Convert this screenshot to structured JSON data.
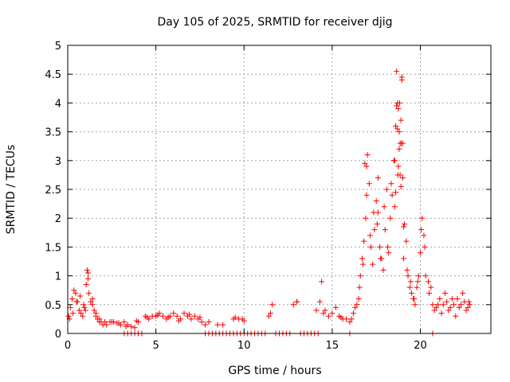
{
  "chart_data": {
    "type": "scatter",
    "title": "Day 105 of 2025, SRMTID for receiver djig",
    "xlabel": "GPS time / hours",
    "ylabel": "SRMTID / TECUs",
    "xlim": [
      0,
      24
    ],
    "ylim": [
      0,
      5
    ],
    "xticks": [
      0,
      5,
      10,
      15,
      20
    ],
    "xtick_labels": [
      "0",
      "5",
      "10",
      "15",
      "20"
    ],
    "yticks": [
      0,
      0.5,
      1,
      1.5,
      2,
      2.5,
      3,
      3.5,
      4,
      4.5,
      5
    ],
    "ytick_labels": [
      "0",
      "0.5",
      "1",
      "1.5",
      "2",
      "2.5",
      "3",
      "3.5",
      "4",
      "4.5",
      "5"
    ],
    "grid": true,
    "marker": "+",
    "marker_color": "#ff0000",
    "series": [
      {
        "name": "SRMTID",
        "x": [
          0.05,
          0.15,
          0.25,
          0.35,
          0.45,
          0.55,
          0.65,
          0.75,
          0.85,
          0.95,
          1.05,
          1.1,
          1.15,
          1.2,
          1.3,
          1.4,
          1.5,
          1.6,
          1.7,
          1.8,
          1.9,
          2.0,
          2.2,
          2.4,
          2.6,
          2.8,
          3.0,
          3.2,
          3.4,
          3.6,
          3.8,
          4.0,
          4.4,
          4.6,
          4.8,
          5.0,
          5.2,
          5.4,
          5.6,
          5.8,
          6.0,
          6.2,
          6.4,
          6.6,
          6.8,
          7.0,
          7.2,
          7.4,
          7.6,
          7.8,
          8.0,
          8.5,
          8.8,
          9.4,
          9.7,
          9.9,
          11.4,
          11.6,
          12.8,
          13.0,
          14.1,
          14.3,
          14.4,
          14.6,
          14.8,
          15.0,
          15.2,
          15.4,
          15.6,
          15.8,
          16.0,
          16.2,
          16.4,
          16.5,
          16.6,
          16.7,
          16.8,
          16.9,
          17.0,
          17.1,
          17.2,
          17.3,
          17.4,
          17.5,
          17.6,
          17.7,
          17.8,
          17.9,
          18.0,
          18.1,
          18.2,
          18.3,
          18.4,
          18.5,
          18.6,
          18.65,
          18.7,
          18.75,
          18.8,
          18.85,
          18.9,
          18.95,
          19.0,
          19.1,
          19.2,
          19.3,
          19.4,
          19.5,
          19.6,
          19.7,
          19.8,
          19.9,
          20.0,
          20.1,
          20.2,
          20.3,
          20.5,
          20.7,
          20.9,
          21.1,
          21.3,
          21.5,
          21.7,
          21.9,
          22.1,
          22.3,
          22.5,
          22.7,
          22.8,
          0.1,
          0.3,
          0.5,
          0.7,
          0.9,
          1.0,
          1.15,
          1.4,
          1.6,
          1.8,
          2.1,
          2.5,
          2.9,
          3.3,
          3.9,
          4.5,
          5.1,
          5.7,
          6.3,
          6.9,
          7.5,
          9.5,
          10.0,
          11.5,
          13.0,
          14.5,
          15.5,
          16.1,
          16.3,
          16.55,
          16.75,
          16.95,
          17.15,
          17.35,
          17.55,
          17.75,
          17.95,
          18.15,
          18.35,
          18.55,
          18.72,
          18.82,
          18.92,
          19.05,
          19.25,
          19.45,
          19.65,
          19.85,
          20.05,
          20.25,
          20.45,
          20.6,
          20.8,
          21.0,
          21.2,
          21.4,
          21.6,
          21.8,
          22.0,
          22.2,
          22.4,
          22.6,
          22.75,
          3.2,
          3.4,
          3.6,
          3.8,
          4.0,
          4.2,
          7.8,
          8.0,
          8.2,
          8.4,
          8.6,
          8.8,
          9.0,
          9.2,
          9.4,
          9.6,
          9.8,
          10.0,
          10.2,
          10.4,
          10.6,
          10.8,
          11.0,
          11.2,
          11.8,
          12.0,
          12.2,
          12.4,
          12.6,
          13.2,
          13.4,
          13.6,
          13.8,
          14.0,
          14.2,
          16.0,
          20.7,
          16.85,
          16.95,
          17.6,
          18.7,
          18.8,
          18.9,
          18.95,
          19.0,
          18.75,
          18.65,
          18.6,
          18.55,
          18.85,
          19.05
        ],
        "y": [
          0.3,
          0.45,
          0.6,
          0.75,
          0.7,
          0.55,
          0.4,
          0.35,
          0.3,
          0.45,
          0.85,
          1.1,
          0.95,
          0.7,
          0.55,
          0.5,
          0.4,
          0.3,
          0.25,
          0.2,
          0.2,
          0.15,
          0.15,
          0.2,
          0.2,
          0.18,
          0.15,
          0.2,
          0.15,
          0.12,
          0.1,
          0.2,
          0.3,
          0.25,
          0.3,
          0.3,
          0.35,
          0.3,
          0.25,
          0.3,
          0.35,
          0.3,
          0.25,
          0.35,
          0.3,
          0.25,
          0.3,
          0.25,
          0.2,
          0.15,
          0.2,
          0.15,
          0.15,
          0.25,
          0.25,
          0.25,
          0.3,
          0.5,
          0.5,
          0.55,
          0.4,
          0.55,
          0.9,
          0.4,
          0.3,
          0.35,
          0.45,
          0.3,
          0.25,
          0.25,
          0.2,
          0.35,
          0.5,
          0.6,
          1.0,
          1.3,
          1.6,
          2.0,
          3.1,
          2.6,
          1.5,
          1.2,
          1.8,
          2.3,
          2.7,
          1.5,
          1.3,
          1.1,
          1.8,
          2.5,
          1.4,
          2.0,
          2.4,
          3.0,
          3.6,
          4.55,
          4.0,
          3.9,
          3.5,
          3.3,
          3.7,
          4.4,
          2.7,
          1.9,
          1.6,
          1.0,
          0.8,
          0.7,
          0.6,
          0.5,
          0.8,
          1.0,
          1.4,
          2.0,
          1.7,
          1.0,
          0.7,
          0.5,
          0.45,
          0.6,
          0.5,
          0.55,
          0.45,
          0.5,
          0.6,
          0.5,
          0.55,
          0.45,
          0.5,
          0.25,
          0.35,
          0.55,
          0.65,
          0.5,
          0.4,
          1.05,
          0.6,
          0.35,
          0.25,
          0.2,
          0.2,
          0.18,
          0.12,
          0.22,
          0.28,
          0.32,
          0.28,
          0.22,
          0.33,
          0.28,
          0.28,
          0.22,
          0.35,
          0.55,
          0.35,
          0.28,
          0.25,
          0.45,
          0.8,
          1.2,
          2.9,
          1.7,
          2.1,
          1.9,
          1.3,
          2.2,
          1.5,
          2.6,
          3.0,
          2.75,
          4.0,
          3.3,
          1.3,
          1.1,
          0.9,
          0.6,
          0.9,
          1.8,
          1.5,
          0.9,
          0.8,
          0.4,
          0.5,
          0.35,
          0.7,
          0.4,
          0.6,
          0.3,
          0.45,
          0.7,
          0.4,
          0.55,
          0.0,
          0.0,
          0.0,
          0.0,
          0.0,
          0.0,
          0.0,
          0.0,
          0.0,
          0.0,
          0.0,
          0.0,
          0.0,
          0.0,
          0.0,
          0.0,
          0.0,
          0.0,
          0.0,
          0.0,
          0.0,
          0.0,
          0.0,
          0.0,
          0.0,
          0.0,
          0.0,
          0.0,
          0.0,
          0.0,
          0.0,
          0.0,
          0.0,
          0.0,
          0.0,
          0.0,
          0.0,
          2.95,
          2.4,
          2.1,
          3.55,
          3.2,
          2.55,
          4.45,
          3.3,
          2.9,
          3.95,
          2.45,
          2.2,
          2.75,
          1.85
        ]
      }
    ]
  }
}
